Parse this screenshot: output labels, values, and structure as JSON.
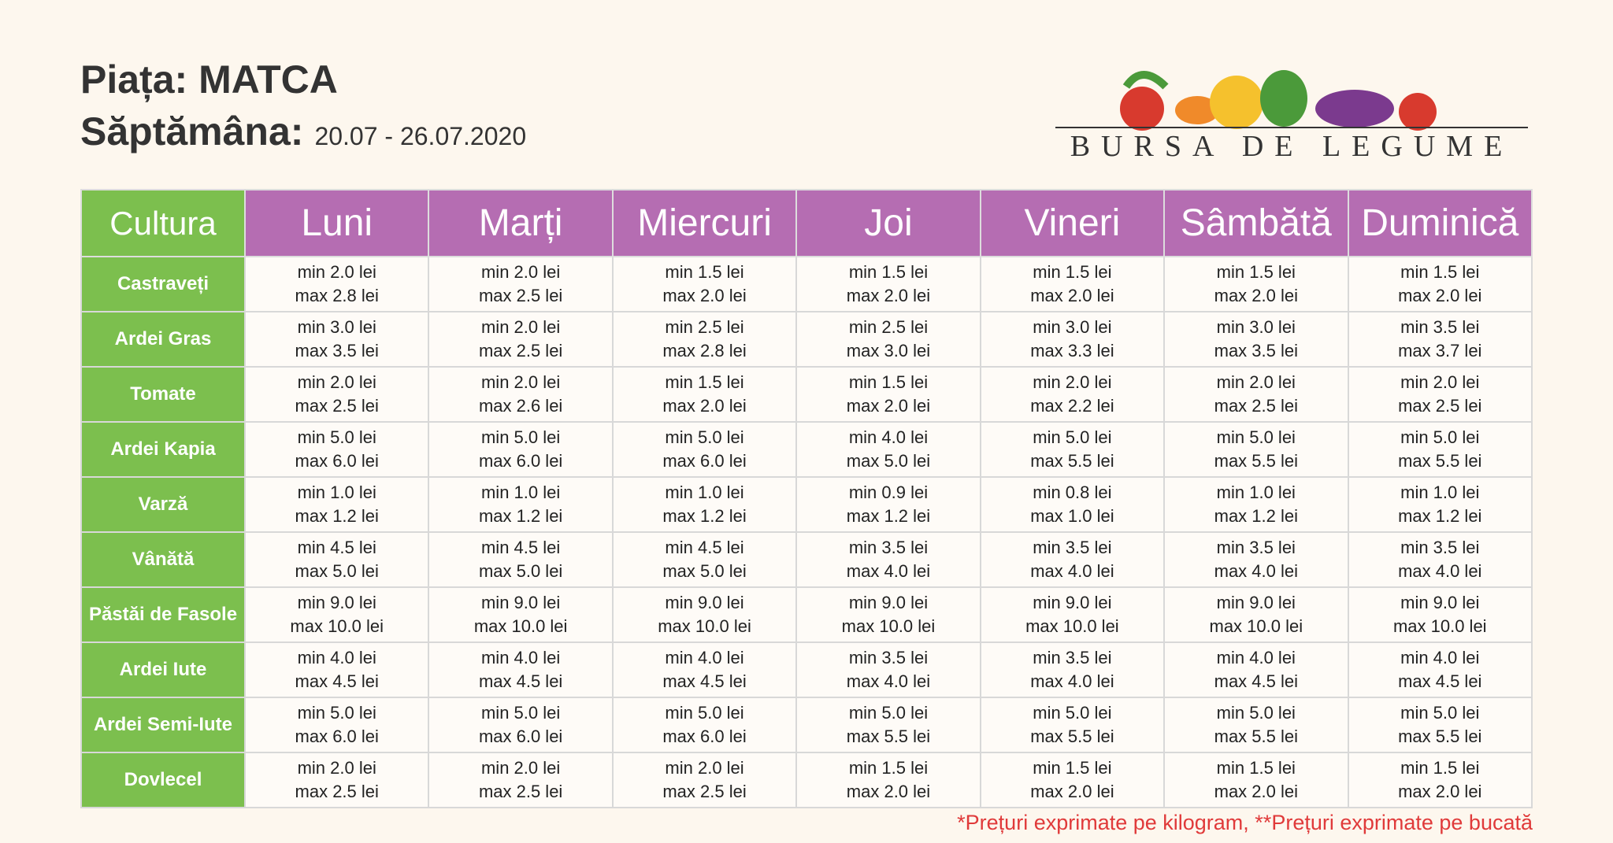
{
  "header": {
    "market_label": "Piața:",
    "market": "MATCA",
    "week_label": "Săptămâna:",
    "week": "20.07 - 26.07.2020",
    "logo": "BURSA DE LEGUME"
  },
  "table": {
    "columns": [
      "Cultura",
      "Luni",
      "Marți",
      "Miercuri",
      "Joi",
      "Vineri",
      "Sâmbătă",
      "Duminică"
    ],
    "rows": [
      {
        "name": "Castraveți",
        "cells": [
          [
            "min 2.0 lei",
            "max 2.8 lei"
          ],
          [
            "min 2.0 lei",
            "max 2.5 lei"
          ],
          [
            "min 1.5 lei",
            "max 2.0 lei"
          ],
          [
            "min 1.5 lei",
            "max 2.0 lei"
          ],
          [
            "min 1.5 lei",
            "max 2.0 lei"
          ],
          [
            "min 1.5 lei",
            "max 2.0 lei"
          ],
          [
            "min 1.5 lei",
            "max 2.0 lei"
          ]
        ]
      },
      {
        "name": "Ardei Gras",
        "cells": [
          [
            "min 3.0 lei",
            "max 3.5 lei"
          ],
          [
            "min 2.0 lei",
            "max 2.5 lei"
          ],
          [
            "min 2.5 lei",
            "max 2.8 lei"
          ],
          [
            "min 2.5 lei",
            "max 3.0 lei"
          ],
          [
            "min 3.0 lei",
            "max 3.3 lei"
          ],
          [
            "min 3.0 lei",
            "max 3.5 lei"
          ],
          [
            "min 3.5 lei",
            "max 3.7 lei"
          ]
        ]
      },
      {
        "name": "Tomate",
        "cells": [
          [
            "min 2.0 lei",
            "max 2.5 lei"
          ],
          [
            "min 2.0 lei",
            "max 2.6 lei"
          ],
          [
            "min 1.5 lei",
            "max 2.0 lei"
          ],
          [
            "min 1.5 lei",
            "max 2.0 lei"
          ],
          [
            "min 2.0 lei",
            "max 2.2 lei"
          ],
          [
            "min 2.0 lei",
            "max 2.5 lei"
          ],
          [
            "min 2.0 lei",
            "max 2.5 lei"
          ]
        ]
      },
      {
        "name": "Ardei Kapia",
        "cells": [
          [
            "min 5.0 lei",
            "max 6.0 lei"
          ],
          [
            "min 5.0 lei",
            "max 6.0 lei"
          ],
          [
            "min 5.0 lei",
            "max 6.0 lei"
          ],
          [
            "min 4.0 lei",
            "max 5.0 lei"
          ],
          [
            "min 5.0 lei",
            "max 5.5 lei"
          ],
          [
            "min 5.0 lei",
            "max 5.5 lei"
          ],
          [
            "min 5.0 lei",
            "max 5.5 lei"
          ]
        ]
      },
      {
        "name": "Varză",
        "cells": [
          [
            "min 1.0 lei",
            "max 1.2 lei"
          ],
          [
            "min 1.0 lei",
            "max 1.2 lei"
          ],
          [
            "min 1.0 lei",
            "max 1.2 lei"
          ],
          [
            "min 0.9 lei",
            "max 1.2 lei"
          ],
          [
            "min 0.8 lei",
            "max 1.0 lei"
          ],
          [
            "min 1.0 lei",
            "max 1.2 lei"
          ],
          [
            "min 1.0 lei",
            "max 1.2 lei"
          ]
        ]
      },
      {
        "name": "Vânătă",
        "cells": [
          [
            "min 4.5 lei",
            "max 5.0 lei"
          ],
          [
            "min 4.5 lei",
            "max 5.0 lei"
          ],
          [
            "min 4.5 lei",
            "max 5.0 lei"
          ],
          [
            "min 3.5 lei",
            "max 4.0 lei"
          ],
          [
            "min 3.5 lei",
            "max 4.0 lei"
          ],
          [
            "min 3.5 lei",
            "max 4.0 lei"
          ],
          [
            "min 3.5 lei",
            "max 4.0 lei"
          ]
        ]
      },
      {
        "name": "Păstăi de Fasole",
        "cells": [
          [
            "min 9.0 lei",
            "max 10.0 lei"
          ],
          [
            "min 9.0 lei",
            "max 10.0 lei"
          ],
          [
            "min 9.0 lei",
            "max 10.0 lei"
          ],
          [
            "min 9.0 lei",
            "max 10.0 lei"
          ],
          [
            "min 9.0 lei",
            "max 10.0 lei"
          ],
          [
            "min 9.0 lei",
            "max 10.0 lei"
          ],
          [
            "min 9.0 lei",
            "max 10.0 lei"
          ]
        ]
      },
      {
        "name": "Ardei Iute",
        "cells": [
          [
            "min 4.0 lei",
            "max 4.5 lei"
          ],
          [
            "min 4.0 lei",
            "max 4.5 lei"
          ],
          [
            "min 4.0 lei",
            "max 4.5 lei"
          ],
          [
            "min 3.5 lei",
            "max 4.0 lei"
          ],
          [
            "min 3.5 lei",
            "max 4.0 lei"
          ],
          [
            "min 4.0 lei",
            "max 4.5 lei"
          ],
          [
            "min 4.0 lei",
            "max 4.5 lei"
          ]
        ]
      },
      {
        "name": "Ardei Semi-Iute",
        "cells": [
          [
            "min 5.0 lei",
            "max 6.0 lei"
          ],
          [
            "min 5.0 lei",
            "max 6.0 lei"
          ],
          [
            "min 5.0 lei",
            "max 6.0 lei"
          ],
          [
            "min 5.0 lei",
            "max 5.5 lei"
          ],
          [
            "min 5.0 lei",
            "max 5.5 lei"
          ],
          [
            "min 5.0 lei",
            "max 5.5 lei"
          ],
          [
            "min 5.0 lei",
            "max 5.5 lei"
          ]
        ]
      },
      {
        "name": "Dovlecel",
        "cells": [
          [
            "min 2.0 lei",
            "max 2.5 lei"
          ],
          [
            "min 2.0 lei",
            "max 2.5 lei"
          ],
          [
            "min 2.0 lei",
            "max 2.5 lei"
          ],
          [
            "min 1.5 lei",
            "max 2.0 lei"
          ],
          [
            "min 1.5 lei",
            "max 2.0 lei"
          ],
          [
            "min 1.5 lei",
            "max 2.0 lei"
          ],
          [
            "min 1.5 lei",
            "max 2.0 lei"
          ]
        ]
      }
    ]
  },
  "footnote": "*Prețuri exprimate pe kilogram, **Prețuri exprimate pe bucată"
}
